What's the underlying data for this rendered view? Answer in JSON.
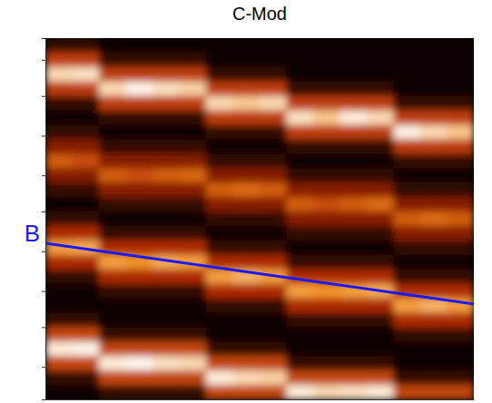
{
  "chart_data": {
    "type": "heatmap",
    "title": "C-Mod",
    "xlim": [
      0,
      16
    ],
    "ylim": [
      25,
      0
    ],
    "yticks": [
      1.5,
      4,
      6.75,
      9.5,
      12,
      14.75,
      17.5,
      20,
      22.75
    ],
    "tick_labels": false,
    "color_range": [
      0,
      1
    ],
    "cells": [
      [
        0.1,
        0.1,
        0.03,
        0.03,
        0.03,
        0.03,
        0.03,
        0.03,
        0.03,
        0.03,
        0.03,
        0.03,
        0.03,
        0.03,
        0.03,
        0.03
      ],
      [
        0.45,
        0.45,
        0.1,
        0.1,
        0.1,
        0.1,
        0.03,
        0.03,
        0.03,
        0.03,
        0.03,
        0.03,
        0.03,
        0.03,
        0.03,
        0.03
      ],
      [
        0.9,
        0.92,
        0.45,
        0.45,
        0.45,
        0.45,
        0.1,
        0.1,
        0.1,
        0.03,
        0.03,
        0.03,
        0.03,
        0.03,
        0.03,
        0.03
      ],
      [
        0.45,
        0.45,
        0.9,
        0.97,
        0.92,
        0.88,
        0.45,
        0.45,
        0.45,
        0.1,
        0.1,
        0.1,
        0.1,
        0.03,
        0.03,
        0.03
      ],
      [
        0.1,
        0.1,
        0.45,
        0.45,
        0.45,
        0.45,
        0.9,
        0.86,
        0.9,
        0.45,
        0.45,
        0.45,
        0.45,
        0.1,
        0.1,
        0.1
      ],
      [
        0.03,
        0.03,
        0.1,
        0.1,
        0.1,
        0.1,
        0.45,
        0.45,
        0.45,
        0.92,
        0.85,
        0.95,
        0.9,
        0.45,
        0.45,
        0.45
      ],
      [
        0.1,
        0.1,
        0.03,
        0.03,
        0.03,
        0.03,
        0.1,
        0.1,
        0.1,
        0.45,
        0.45,
        0.45,
        0.45,
        0.96,
        0.9,
        0.85
      ],
      [
        0.28,
        0.28,
        0.1,
        0.1,
        0.1,
        0.1,
        0.03,
        0.03,
        0.03,
        0.1,
        0.1,
        0.1,
        0.1,
        0.45,
        0.45,
        0.45
      ],
      [
        0.55,
        0.5,
        0.28,
        0.28,
        0.28,
        0.28,
        0.1,
        0.1,
        0.1,
        0.03,
        0.03,
        0.03,
        0.03,
        0.1,
        0.1,
        0.1
      ],
      [
        0.28,
        0.28,
        0.55,
        0.5,
        0.55,
        0.58,
        0.28,
        0.28,
        0.28,
        0.1,
        0.1,
        0.1,
        0.1,
        0.03,
        0.03,
        0.03
      ],
      [
        0.1,
        0.1,
        0.28,
        0.28,
        0.28,
        0.28,
        0.55,
        0.6,
        0.55,
        0.28,
        0.28,
        0.28,
        0.28,
        0.1,
        0.1,
        0.1
      ],
      [
        0.03,
        0.03,
        0.1,
        0.1,
        0.1,
        0.1,
        0.28,
        0.28,
        0.28,
        0.55,
        0.5,
        0.55,
        0.6,
        0.28,
        0.28,
        0.28
      ],
      [
        0.1,
        0.1,
        0.03,
        0.03,
        0.03,
        0.03,
        0.1,
        0.1,
        0.1,
        0.28,
        0.28,
        0.28,
        0.28,
        0.55,
        0.6,
        0.55
      ],
      [
        0.38,
        0.38,
        0.1,
        0.1,
        0.1,
        0.1,
        0.03,
        0.03,
        0.03,
        0.1,
        0.1,
        0.1,
        0.1,
        0.28,
        0.28,
        0.28
      ],
      [
        0.75,
        0.78,
        0.38,
        0.38,
        0.38,
        0.38,
        0.1,
        0.1,
        0.1,
        0.03,
        0.03,
        0.03,
        0.03,
        0.1,
        0.1,
        0.1
      ],
      [
        0.38,
        0.38,
        0.75,
        0.72,
        0.78,
        0.75,
        0.38,
        0.38,
        0.38,
        0.1,
        0.1,
        0.1,
        0.1,
        0.03,
        0.03,
        0.03
      ],
      [
        0.1,
        0.1,
        0.38,
        0.38,
        0.38,
        0.38,
        0.75,
        0.8,
        0.75,
        0.38,
        0.38,
        0.38,
        0.38,
        0.1,
        0.1,
        0.1
      ],
      [
        0.03,
        0.03,
        0.1,
        0.1,
        0.1,
        0.1,
        0.38,
        0.38,
        0.38,
        0.75,
        0.72,
        0.75,
        0.78,
        0.38,
        0.38,
        0.38
      ],
      [
        0.03,
        0.03,
        0.03,
        0.03,
        0.03,
        0.03,
        0.1,
        0.1,
        0.1,
        0.38,
        0.38,
        0.38,
        0.38,
        0.75,
        0.8,
        0.75
      ],
      [
        0.1,
        0.1,
        0.03,
        0.03,
        0.03,
        0.03,
        0.03,
        0.03,
        0.03,
        0.1,
        0.1,
        0.1,
        0.1,
        0.38,
        0.38,
        0.38
      ],
      [
        0.48,
        0.48,
        0.1,
        0.1,
        0.1,
        0.1,
        0.03,
        0.03,
        0.03,
        0.03,
        0.03,
        0.03,
        0.03,
        0.1,
        0.1,
        0.1
      ],
      [
        0.95,
        0.97,
        0.48,
        0.48,
        0.48,
        0.48,
        0.1,
        0.1,
        0.1,
        0.03,
        0.03,
        0.03,
        0.03,
        0.03,
        0.03,
        0.03
      ],
      [
        0.48,
        0.48,
        0.95,
        0.98,
        0.92,
        0.9,
        0.48,
        0.48,
        0.48,
        0.1,
        0.1,
        0.1,
        0.1,
        0.03,
        0.03,
        0.03
      ],
      [
        0.1,
        0.1,
        0.48,
        0.48,
        0.48,
        0.48,
        0.95,
        0.9,
        0.88,
        0.48,
        0.48,
        0.48,
        0.48,
        0.1,
        0.1,
        0.1
      ],
      [
        0.03,
        0.03,
        0.1,
        0.1,
        0.1,
        0.1,
        0.48,
        0.48,
        0.48,
        0.95,
        0.9,
        0.92,
        0.95,
        0.48,
        0.48,
        0.48
      ]
    ],
    "annotations": [
      {
        "label": "B",
        "x": [
          0,
          16
        ],
        "y": [
          14.2,
          18.4
        ],
        "color": "#1a1aff"
      }
    ]
  }
}
